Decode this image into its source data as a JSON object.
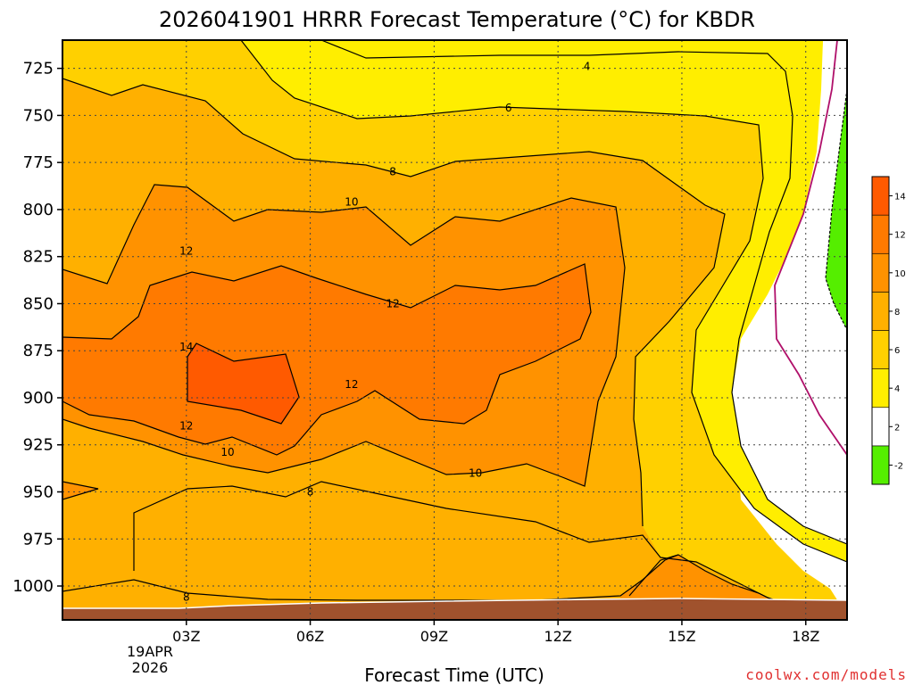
{
  "chart_data": {
    "type": "heatmap",
    "title": "2026041901 HRRR Forecast Temperature (°C) for KBDR",
    "xlabel": "Forecast Time (UTC)",
    "ylabel": "",
    "x_ticks": [
      "03Z",
      "06Z",
      "09Z",
      "12Z",
      "15Z",
      "18Z"
    ],
    "x_date_lines": [
      "19APR",
      "2026"
    ],
    "y_ticks": [
      725,
      750,
      775,
      800,
      825,
      850,
      875,
      900,
      925,
      950,
      975,
      1000
    ],
    "ylim_hpa": [
      1018,
      710
    ],
    "xlim_hours": [
      0,
      19
    ],
    "colorbar": {
      "boundaries": [
        -2,
        2,
        4,
        6,
        8,
        10,
        12,
        14,
        16
      ],
      "tick_labels": [
        "-2",
        "2",
        "4",
        "6",
        "8",
        "10",
        "12",
        "14"
      ],
      "colors": [
        "#55ee00",
        "#ffffff",
        "#ffee00",
        "#ffd000",
        "#ffb000",
        "#ff9200",
        "#ff7a00",
        "#ff5a00"
      ]
    },
    "contour_labels": [
      {
        "text": "4",
        "hour": 12.7,
        "hpa": 724
      },
      {
        "text": "6",
        "hour": 10.8,
        "hpa": 746
      },
      {
        "text": "8",
        "hour": 8.0,
        "hpa": 780
      },
      {
        "text": "10",
        "hour": 7.0,
        "hpa": 796
      },
      {
        "text": "12",
        "hour": 3.0,
        "hpa": 822
      },
      {
        "text": "12",
        "hour": 8.0,
        "hpa": 850
      },
      {
        "text": "14",
        "hour": 3.0,
        "hpa": 873
      },
      {
        "text": "12",
        "hour": 7.0,
        "hpa": 893
      },
      {
        "text": "12",
        "hour": 3.0,
        "hpa": 915
      },
      {
        "text": "10",
        "hour": 4.0,
        "hpa": 929
      },
      {
        "text": "10",
        "hour": 10.0,
        "hpa": 940
      },
      {
        "text": "8",
        "hour": 6.0,
        "hpa": 950
      },
      {
        "text": "8",
        "hour": 3.0,
        "hpa": 1006
      }
    ],
    "ground_color": "#a0522d",
    "grid": true
  },
  "credit": "coolwx.com/models"
}
